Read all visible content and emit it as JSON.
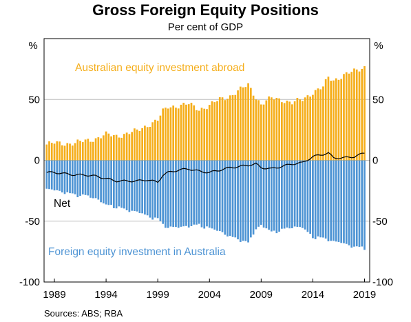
{
  "chart_data": {
    "type": "bar",
    "title": "Gross Foreign Equity Positions",
    "subtitle": "Per cent of GDP",
    "unit_left": "%",
    "unit_right": "%",
    "source": "Sources:   ABS; RBA",
    "ylim": [
      -100,
      100
    ],
    "y_ticks": [
      50,
      0,
      -50,
      -100
    ],
    "y_tick_labels": [
      "50",
      "0",
      "-50",
      "-100"
    ],
    "x_range": [
      1988.0,
      2019.5
    ],
    "x_ticks": [
      1989,
      1994,
      1999,
      2004,
      2009,
      2014,
      2019
    ],
    "x_tick_labels": [
      "1989",
      "1994",
      "1999",
      "2004",
      "2009",
      "2014",
      "2019"
    ],
    "grid": "horizontal at tick values",
    "annotations": {
      "assets": "Australian equity investment abroad",
      "liabilities": "Foreign equity investment in Australia",
      "net": "Net"
    },
    "colors": {
      "assets": "#f5ae1b",
      "liabilities": "#4e94d4",
      "net": "#000000",
      "grid": "#bdbdbd"
    },
    "anchors": {
      "years": [
        1988.25,
        1989,
        1990,
        1991,
        1992,
        1993,
        1994,
        1995,
        1996,
        1997,
        1998,
        1999,
        1999.5,
        2000,
        2001,
        2002,
        2003,
        2004,
        2005,
        2006,
        2007,
        2007.75,
        2008.5,
        2009,
        2010,
        2011,
        2012,
        2013,
        2014,
        2015,
        2015.5,
        2016,
        2017,
        2018,
        2019
      ],
      "abroad": [
        13,
        14,
        14,
        14,
        16,
        18,
        21,
        20,
        22,
        24,
        29,
        33,
        40,
        44,
        45,
        46,
        42,
        45,
        50,
        53,
        58,
        62,
        52,
        46,
        51,
        50,
        47,
        50,
        56,
        60,
        68,
        66,
        70,
        73,
        77
      ],
      "in_australia": [
        -23,
        -24,
        -26,
        -27,
        -28,
        -31,
        -36,
        -37,
        -40,
        -42,
        -45,
        -47,
        -52,
        -54,
        -55,
        -53,
        -52,
        -55,
        -58,
        -62,
        -64,
        -67,
        -56,
        -53,
        -58,
        -56,
        -54,
        -55,
        -62,
        -63,
        -64,
        -66,
        -68,
        -70,
        -71
      ],
      "net": [
        -10,
        -10,
        -11,
        -12,
        -12,
        -13,
        -15,
        -17,
        -17,
        -17,
        -16,
        -18,
        -12,
        -10,
        -8,
        -7,
        -9,
        -10,
        -8,
        -6,
        -5,
        -4,
        -3,
        -6,
        -7,
        -5,
        -3,
        -2,
        3,
        5,
        6,
        2,
        2,
        3,
        6
      ]
    }
  }
}
